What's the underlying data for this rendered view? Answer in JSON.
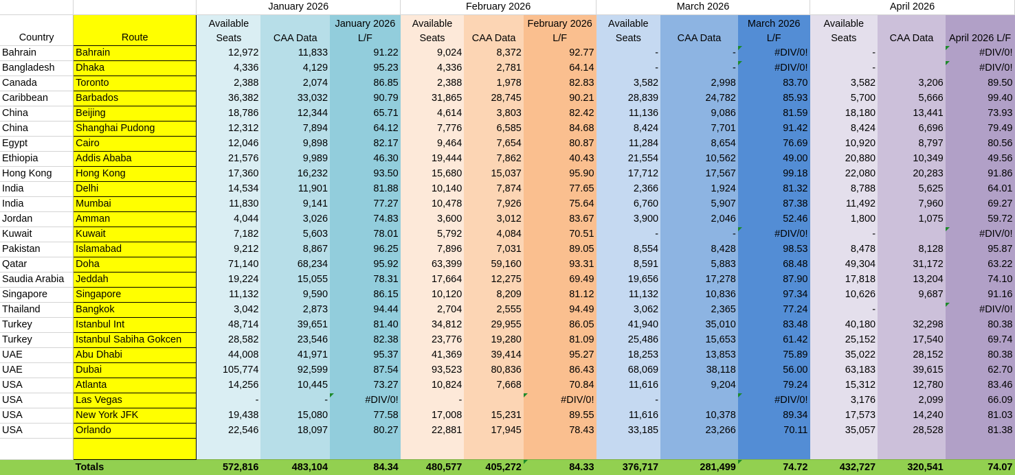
{
  "headers": {
    "months": [
      "January 2026",
      "February 2026",
      "March 2026",
      "April 2026"
    ],
    "country": "Country",
    "route": "Route",
    "sub": [
      [
        "Available Seats",
        "CAA Data",
        "January 2026 L/F"
      ],
      [
        "Available Seats",
        "CAA Data",
        "February 2026 L/F"
      ],
      [
        "Available Seats",
        "CAA Data",
        "March 2026 L/F"
      ],
      [
        "Available Seats",
        "CAA Data",
        "April  2026 L/F"
      ]
    ]
  },
  "rows": [
    {
      "country": "Bahrain",
      "route": "Bahrain",
      "vals": [
        "12,972",
        "11,833",
        "91.22",
        "9,024",
        "8,372",
        "92.77",
        "-",
        "-",
        "#DIV/0!",
        "-",
        "",
        "#DIV/0!"
      ]
    },
    {
      "country": "Bangladesh",
      "route": "Dhaka",
      "vals": [
        "4,336",
        "4,129",
        "95.23",
        "4,336",
        "2,781",
        "64.14",
        "-",
        "-",
        "#DIV/0!",
        "-",
        "",
        "#DIV/0!"
      ]
    },
    {
      "country": "Canada",
      "route": "Toronto",
      "vals": [
        "2,388",
        "2,074",
        "86.85",
        "2,388",
        "1,978",
        "82.83",
        "3,582",
        "2,998",
        "83.70",
        "3,582",
        "3,206",
        "89.50"
      ]
    },
    {
      "country": "Caribbean",
      "route": "Barbados",
      "vals": [
        "36,382",
        "33,032",
        "90.79",
        "31,865",
        "28,745",
        "90.21",
        "28,839",
        "24,782",
        "85.93",
        "5,700",
        "5,666",
        "99.40"
      ]
    },
    {
      "country": "China",
      "route": "Beijing",
      "vals": [
        "18,786",
        "12,344",
        "65.71",
        "4,614",
        "3,803",
        "82.42",
        "11,136",
        "9,086",
        "81.59",
        "18,180",
        "13,441",
        "73.93"
      ]
    },
    {
      "country": "China",
      "route": "Shanghai Pudong",
      "vals": [
        "12,312",
        "7,894",
        "64.12",
        "7,776",
        "6,585",
        "84.68",
        "8,424",
        "7,701",
        "91.42",
        "8,424",
        "6,696",
        "79.49"
      ]
    },
    {
      "country": "Egypt",
      "route": "Cairo",
      "vals": [
        "12,046",
        "9,898",
        "82.17",
        "9,464",
        "7,654",
        "80.87",
        "11,284",
        "8,654",
        "76.69",
        "10,920",
        "8,797",
        "80.56"
      ]
    },
    {
      "country": "Ethiopia",
      "route": "Addis Ababa",
      "vals": [
        "21,576",
        "9,989",
        "46.30",
        "19,444",
        "7,862",
        "40.43",
        "21,554",
        "10,562",
        "49.00",
        "20,880",
        "10,349",
        "49.56"
      ]
    },
    {
      "country": "Hong Kong",
      "route": "Hong Kong",
      "vals": [
        "17,360",
        "16,232",
        "93.50",
        "15,680",
        "15,037",
        "95.90",
        "17,712",
        "17,567",
        "99.18",
        "22,080",
        "20,283",
        "91.86"
      ]
    },
    {
      "country": "India",
      "route": "Delhi",
      "vals": [
        "14,534",
        "11,901",
        "81.88",
        "10,140",
        "7,874",
        "77.65",
        "2,366",
        "1,924",
        "81.32",
        "8,788",
        "5,625",
        "64.01"
      ]
    },
    {
      "country": "India",
      "route": "Mumbai",
      "vals": [
        "11,830",
        "9,141",
        "77.27",
        "10,478",
        "7,926",
        "75.64",
        "6,760",
        "5,907",
        "87.38",
        "11,492",
        "7,960",
        "69.27"
      ]
    },
    {
      "country": "Jordan",
      "route": "Amman",
      "vals": [
        "4,044",
        "3,026",
        "74.83",
        "3,600",
        "3,012",
        "83.67",
        "3,900",
        "2,046",
        "52.46",
        "1,800",
        "1,075",
        "59.72"
      ]
    },
    {
      "country": "Kuwait",
      "route": "Kuwait",
      "vals": [
        "7,182",
        "5,603",
        "78.01",
        "5,792",
        "4,084",
        "70.51",
        "-",
        "-",
        "#DIV/0!",
        "-",
        "",
        "#DIV/0!"
      ]
    },
    {
      "country": "Pakistan",
      "route": "Islamabad",
      "vals": [
        "9,212",
        "8,867",
        "96.25",
        "7,896",
        "7,031",
        "89.05",
        "8,554",
        "8,428",
        "98.53",
        "8,478",
        "8,128",
        "95.87"
      ]
    },
    {
      "country": "Qatar",
      "route": "Doha",
      "vals": [
        "71,140",
        "68,234",
        "95.92",
        "63,399",
        "59,160",
        "93.31",
        "8,591",
        "5,883",
        "68.48",
        "49,304",
        "31,172",
        "63.22"
      ]
    },
    {
      "country": "Saudia Arabia",
      "route": "Jeddah",
      "vals": [
        "19,224",
        "15,055",
        "78.31",
        "17,664",
        "12,275",
        "69.49",
        "19,656",
        "17,278",
        "87.90",
        "17,818",
        "13,204",
        "74.10"
      ]
    },
    {
      "country": "Singapore",
      "route": "Singapore",
      "vals": [
        "11,132",
        "9,590",
        "86.15",
        "10,120",
        "8,209",
        "81.12",
        "11,132",
        "10,836",
        "97.34",
        "10,626",
        "9,687",
        "91.16"
      ]
    },
    {
      "country": "Thailand",
      "route": "Bangkok",
      "vals": [
        "3,042",
        "2,873",
        "94.44",
        "2,704",
        "2,555",
        "94.49",
        "3,062",
        "2,365",
        "77.24",
        "-",
        "",
        "#DIV/0!"
      ]
    },
    {
      "country": "Turkey",
      "route": "Istanbul Int",
      "vals": [
        "48,714",
        "39,651",
        "81.40",
        "34,812",
        "29,955",
        "86.05",
        "41,940",
        "35,010",
        "83.48",
        "40,180",
        "32,298",
        "80.38"
      ]
    },
    {
      "country": "Turkey",
      "route": "Istanbul Sabiha Gokcen",
      "vals": [
        "28,582",
        "23,546",
        "82.38",
        "23,776",
        "19,280",
        "81.09",
        "25,486",
        "15,653",
        "61.42",
        "25,152",
        "17,540",
        "69.74"
      ]
    },
    {
      "country": "UAE",
      "route": "Abu Dhabi",
      "vals": [
        "44,008",
        "41,971",
        "95.37",
        "41,369",
        "39,414",
        "95.27",
        "18,253",
        "13,853",
        "75.89",
        "35,022",
        "28,152",
        "80.38"
      ]
    },
    {
      "country": "UAE",
      "route": "Dubai",
      "vals": [
        "105,774",
        "92,599",
        "87.54",
        "93,523",
        "80,836",
        "86.43",
        "68,069",
        "38,118",
        "56.00",
        "63,183",
        "39,615",
        "62.70"
      ]
    },
    {
      "country": "USA",
      "route": "Atlanta",
      "vals": [
        "14,256",
        "10,445",
        "73.27",
        "10,824",
        "7,668",
        "70.84",
        "11,616",
        "9,204",
        "79.24",
        "15,312",
        "12,780",
        "83.46"
      ]
    },
    {
      "country": "USA",
      "route": "Las Vegas",
      "vals": [
        "-",
        "-",
        "#DIV/0!",
        "-",
        "",
        "#DIV/0!",
        "-",
        "",
        "#DIV/0!",
        "3,176",
        "2,099",
        "66.09"
      ]
    },
    {
      "country": "USA",
      "route": "New York JFK",
      "vals": [
        "19,438",
        "15,080",
        "77.58",
        "17,008",
        "15,231",
        "89.55",
        "11,616",
        "10,378",
        "89.34",
        "17,573",
        "14,240",
        "81.03"
      ]
    },
    {
      "country": "USA",
      "route": "Orlando",
      "vals": [
        "22,546",
        "18,097",
        "80.27",
        "22,881",
        "17,945",
        "78.43",
        "33,185",
        "23,266",
        "70.11",
        "35,057",
        "28,528",
        "81.38"
      ]
    }
  ],
  "totals": {
    "label": "Totals",
    "vals": [
      "572,816",
      "483,104",
      "84.34",
      "480,577",
      "405,272",
      "84.33",
      "376,717",
      "281,499",
      "74.72",
      "432,727",
      "320,541",
      "74.07"
    ]
  }
}
